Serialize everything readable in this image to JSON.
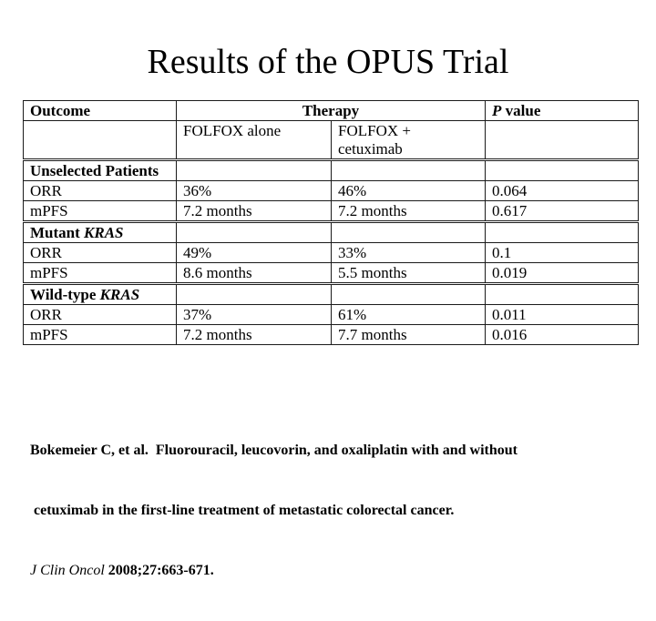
{
  "slide_title": "Results of the OPUS Trial",
  "table": {
    "columns": {
      "outcome": "Outcome",
      "therapy": "Therapy",
      "p_value_italic": "P",
      "p_value_rest": " value",
      "arm_folfox_alone": "FOLFOX alone",
      "arm_folfox_cetuximab_line1": "FOLFOX +",
      "arm_folfox_cetuximab_line2": "cetuximab"
    },
    "sections": [
      {
        "label": "Unselected Patients",
        "label_italic": "",
        "rows": [
          {
            "outcome": "ORR",
            "folfox_alone": "36%",
            "folfox_cetuximab": "46%",
            "p_value": "0.064"
          },
          {
            "outcome": "mPFS",
            "folfox_alone": "7.2 months",
            "folfox_cetuximab": "7.2 months",
            "p_value": "0.617"
          }
        ]
      },
      {
        "label": "Mutant ",
        "label_italic": "KRAS",
        "rows": [
          {
            "outcome": "ORR",
            "folfox_alone": "49%",
            "folfox_cetuximab": "33%",
            "p_value": "0.1"
          },
          {
            "outcome": "mPFS",
            "folfox_alone": "8.6 months",
            "folfox_cetuximab": "5.5 months",
            "p_value": "0.019"
          }
        ]
      },
      {
        "label": "Wild-type ",
        "label_italic": "KRAS",
        "rows": [
          {
            "outcome": "ORR",
            "folfox_alone": "37%",
            "folfox_cetuximab": "61%",
            "p_value": "0.011"
          },
          {
            "outcome": "mPFS",
            "folfox_alone": "7.2 months",
            "folfox_cetuximab": "7.7 months",
            "p_value": "0.016"
          }
        ]
      }
    ]
  },
  "citation": {
    "line1": "Bokemeier C, et al.  Fluorouracil, leucovorin, and oxaliplatin with and without",
    "line2": " cetuximab in the first-line treatment of metastatic colorectal cancer.",
    "journal": "J Clin Oncol",
    "reference": " 2008;27:663-671."
  }
}
